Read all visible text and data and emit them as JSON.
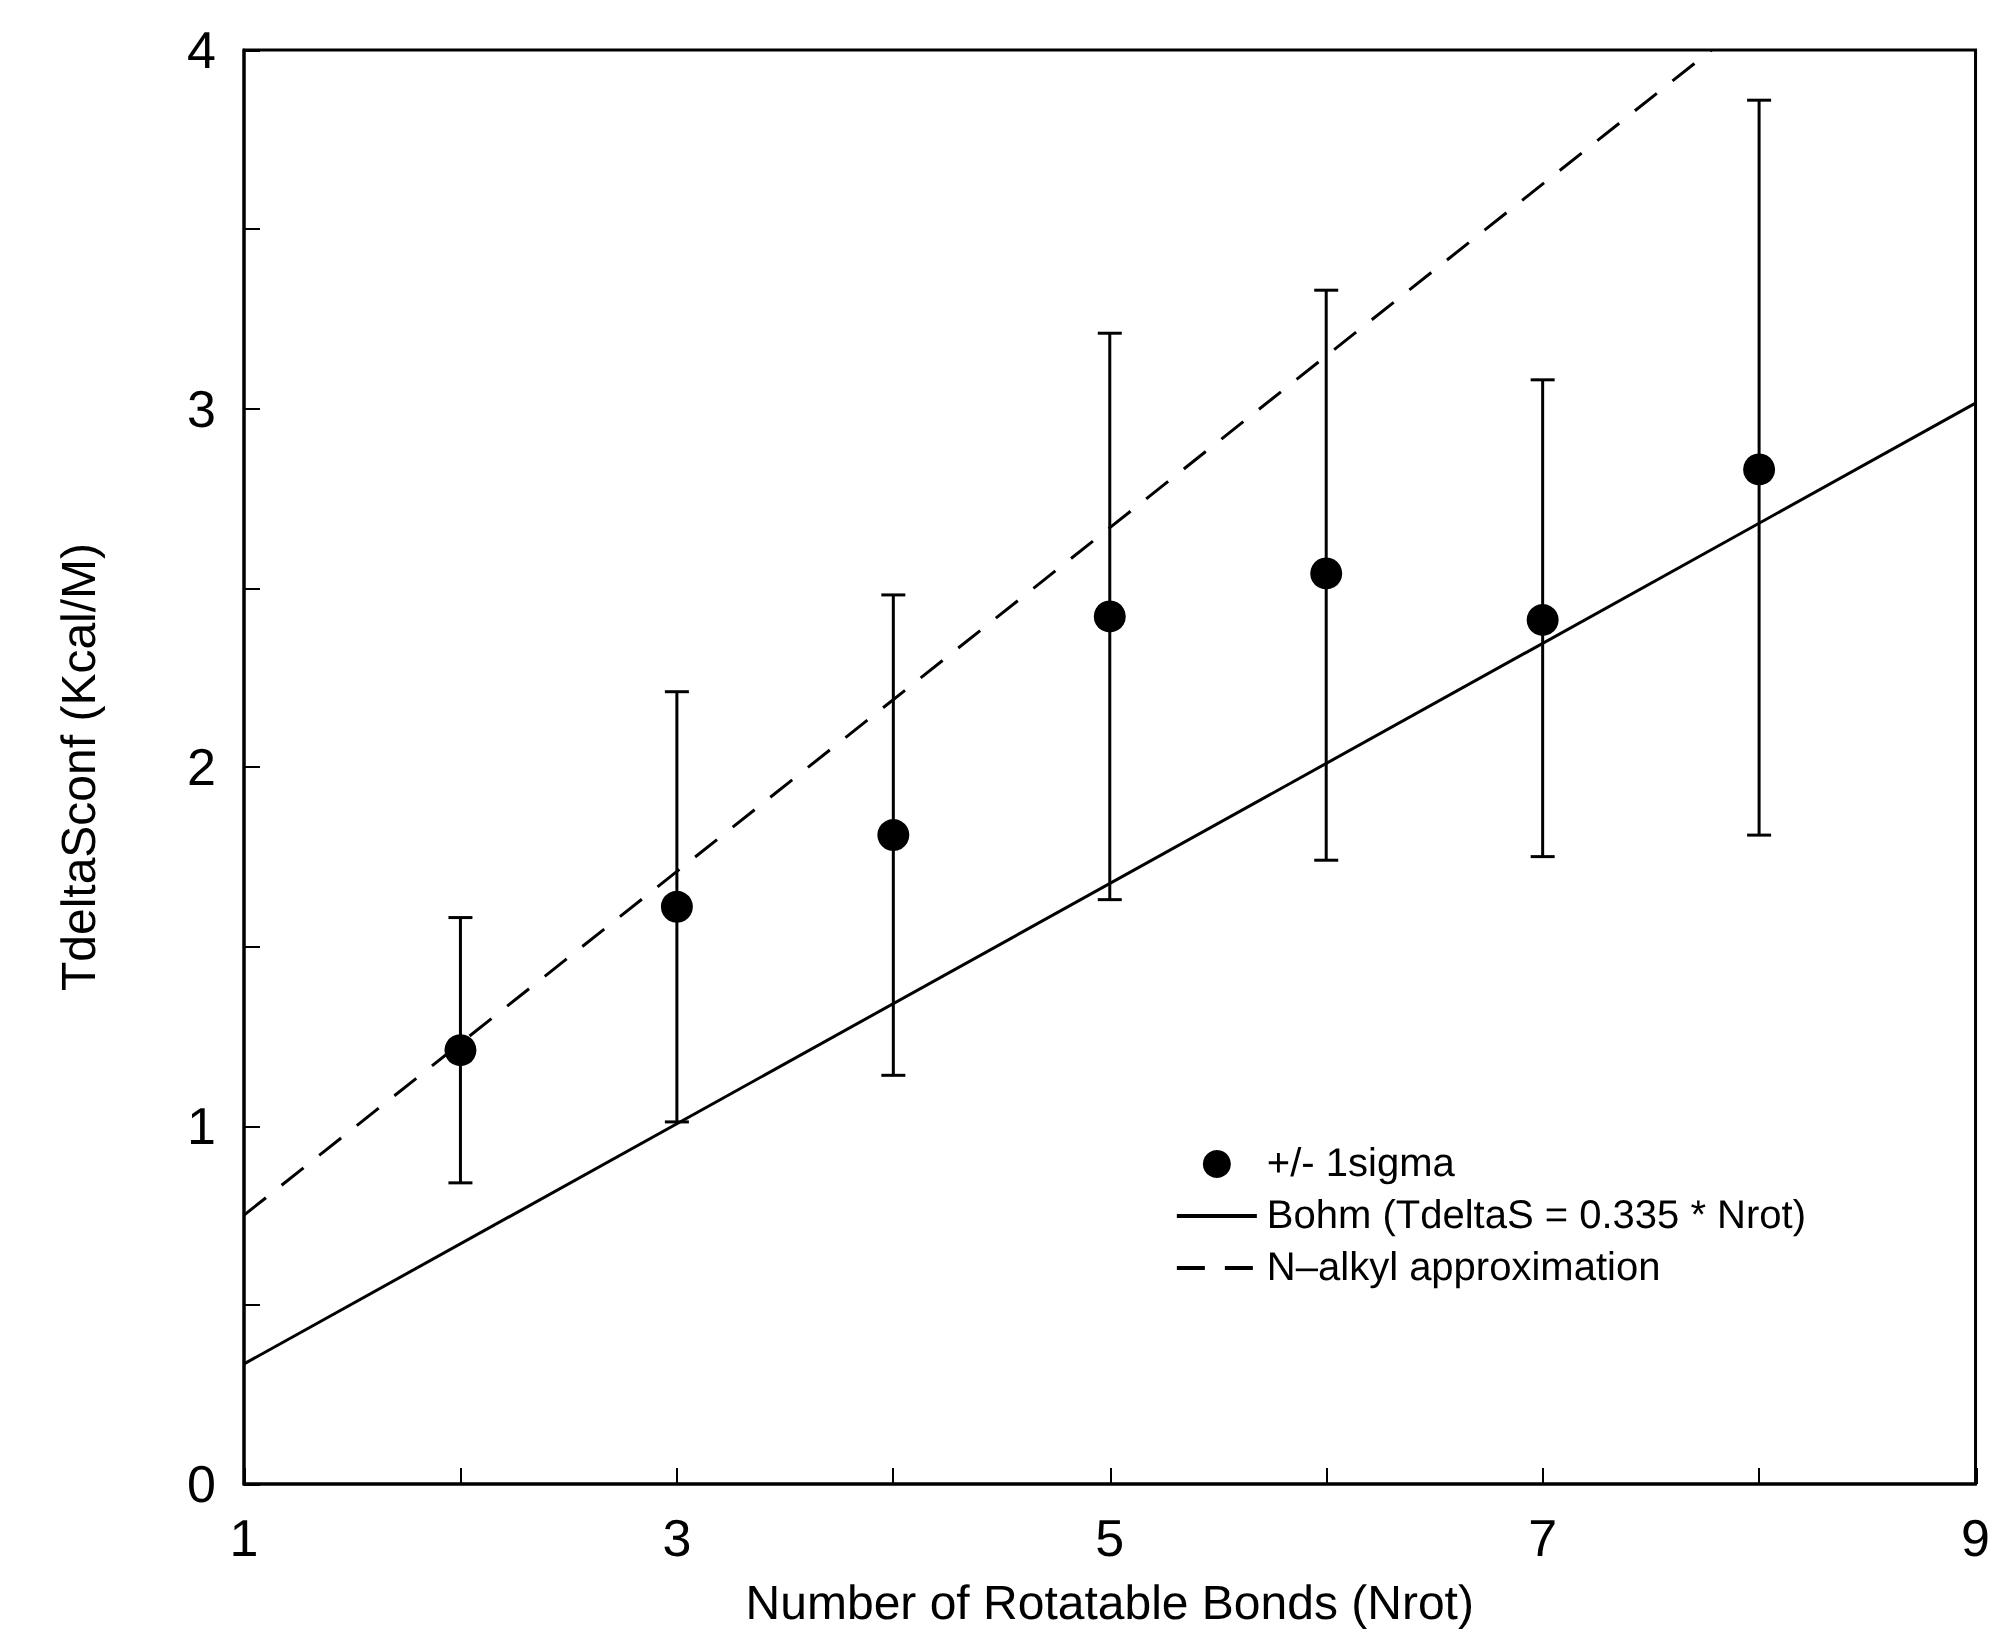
{
  "chart_data": {
    "type": "scatter",
    "xlabel": "Number of Rotatable Bonds (Nrot)",
    "ylabel": "TdeltaSconf (Kcal/M)",
    "xlim": [
      1,
      9
    ],
    "ylim": [
      0,
      4
    ],
    "xticks": [
      1,
      {
        "value": 2,
        "label": null
      },
      3,
      {
        "value": 4,
        "label": null
      },
      5,
      {
        "value": 6,
        "label": null
      },
      7,
      {
        "value": 8,
        "label": null
      },
      9
    ],
    "yticks": [
      0,
      {
        "value": 0.5,
        "label": null
      },
      1,
      {
        "value": 1.5,
        "label": null
      },
      2,
      {
        "value": 2.5,
        "label": null
      },
      3,
      {
        "value": 3.5,
        "label": null
      },
      4
    ],
    "legend": "bottom right",
    "series": [
      {
        "type": "scatter",
        "name": "+/- 1sigma",
        "color": "#000000",
        "marker": "circle",
        "x": [
          2,
          3,
          4,
          5,
          6,
          7,
          8
        ],
        "values": [
          1.21,
          1.61,
          1.81,
          2.42,
          2.54,
          2.41,
          2.83
        ],
        "errors": [
          [
            0.84,
            1.58
          ],
          [
            1.01,
            2.21
          ],
          [
            1.14,
            2.48
          ],
          [
            1.63,
            3.21
          ],
          [
            1.74,
            3.33
          ],
          [
            1.75,
            3.08
          ],
          [
            1.81,
            3.86
          ]
        ]
      },
      {
        "type": "line",
        "name": "Bohm (TdeltaS = 0.335 * Nrot)",
        "color": "#000000",
        "line_style": "solid",
        "marker": "none",
        "x": [
          1,
          9
        ],
        "values": [
          0.335,
          3.015
        ]
      },
      {
        "type": "line",
        "name": "N–alkyl approximation",
        "color": "#000000",
        "line_style": "dashed",
        "marker": "none",
        "x": [
          1,
          7.78
        ],
        "values": [
          0.75,
          4
        ]
      }
    ]
  }
}
